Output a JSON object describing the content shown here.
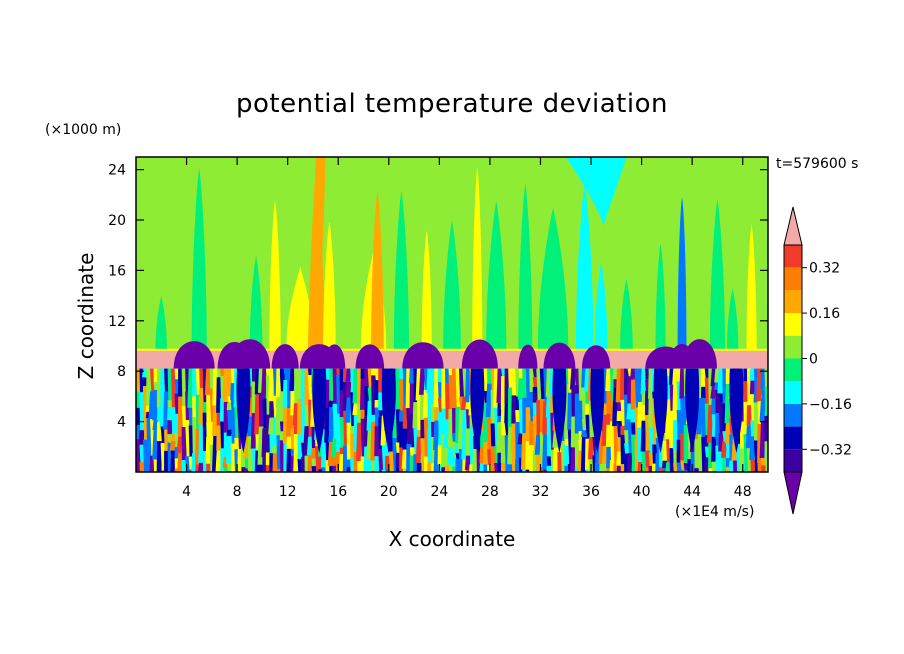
{
  "chart_data": {
    "type": "heatmap",
    "title": "potential temperature deviation",
    "xlabel": "X coordinate",
    "ylabel": "Z coordinate",
    "x_unit": "(×1E4 m/s)",
    "y_unit": "(×1000 m)",
    "time_label": "t=579600 s",
    "xlim": [
      0,
      50
    ],
    "ylim": [
      0,
      25
    ],
    "x_ticks": [
      4,
      8,
      12,
      16,
      20,
      24,
      28,
      32,
      36,
      40,
      44,
      48
    ],
    "y_ticks": [
      4,
      8,
      12,
      16,
      20,
      24
    ],
    "colorbar": {
      "levels": [
        0.4,
        0.32,
        0.24,
        0.16,
        0.08,
        0,
        -0.08,
        -0.16,
        -0.24,
        -0.32,
        -0.4
      ],
      "tick_labels": [
        "0.32",
        "0.16",
        "0",
        "−0.16",
        "−0.32"
      ],
      "tick_values": [
        0.32,
        0.16,
        0,
        -0.16,
        -0.32
      ],
      "colors": [
        "#f4a9a9",
        "#f03a2a",
        "#ff7d00",
        "#ffa800",
        "#ffff00",
        "#8fec34",
        "#00f07a",
        "#00ffff",
        "#0078ff",
        "#0000b4",
        "#3c00a0",
        "#6a00aa"
      ],
      "bins_top_to_bottom": [
        "#f03a2a",
        "#ff7d00",
        "#ffa800",
        "#ffff00",
        "#8fec34",
        "#00f07a",
        "#00ffff",
        "#0078ff",
        "#0000b4",
        "#3c00a0"
      ],
      "over_color": "#f4a9a9",
      "under_color": "#6a00aa"
    },
    "field_regions": {
      "upper_background": "#8fec34",
      "tropopause_band_z": [
        8.2,
        9.7
      ],
      "tropopause_color": "#f4a9a9"
    }
  }
}
